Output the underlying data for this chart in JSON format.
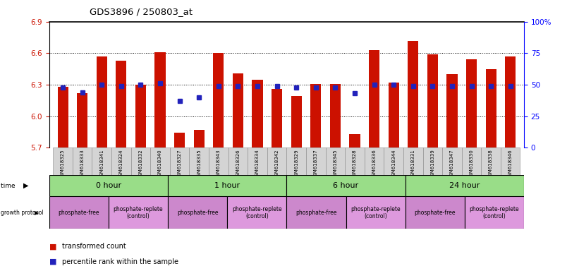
{
  "title": "GDS3896 / 250803_at",
  "samples": [
    "GSM618325",
    "GSM618333",
    "GSM618341",
    "GSM618324",
    "GSM618332",
    "GSM618340",
    "GSM618327",
    "GSM618335",
    "GSM618343",
    "GSM618326",
    "GSM618334",
    "GSM618342",
    "GSM618329",
    "GSM618337",
    "GSM618345",
    "GSM618328",
    "GSM618336",
    "GSM618344",
    "GSM618331",
    "GSM618339",
    "GSM618347",
    "GSM618330",
    "GSM618338",
    "GSM618346"
  ],
  "bar_values": [
    6.28,
    6.22,
    6.57,
    6.53,
    6.3,
    6.61,
    5.84,
    5.87,
    6.6,
    6.41,
    6.35,
    6.26,
    6.19,
    6.31,
    6.31,
    5.83,
    6.63,
    6.32,
    6.72,
    6.59,
    6.4,
    6.54,
    6.45,
    6.57
  ],
  "percentile_values": [
    48,
    44,
    50,
    49,
    50,
    51,
    37,
    40,
    49,
    49,
    49,
    49,
    48,
    48,
    48,
    43,
    50,
    50,
    49,
    49,
    49,
    49,
    49,
    49
  ],
  "ymin": 5.7,
  "ymax": 6.9,
  "yticks": [
    5.7,
    6.0,
    6.3,
    6.6,
    6.9
  ],
  "dotted_lines": [
    6.0,
    6.3,
    6.6
  ],
  "right_yticks": [
    0,
    25,
    50,
    75,
    100
  ],
  "right_yticklabels": [
    "0",
    "25",
    "50",
    "75",
    "100%"
  ],
  "bar_color": "#cc1100",
  "square_color": "#2222bb",
  "groups": [
    {
      "label": "0 hour",
      "start": 0,
      "end": 6
    },
    {
      "label": "1 hour",
      "start": 6,
      "end": 12
    },
    {
      "label": "6 hour",
      "start": 12,
      "end": 18
    },
    {
      "label": "24 hour",
      "start": 18,
      "end": 24
    }
  ],
  "protocols": [
    {
      "label": "phosphate-free",
      "start": 0,
      "end": 3,
      "replete": false
    },
    {
      "label": "phosphate-replete\n(control)",
      "start": 3,
      "end": 6,
      "replete": true
    },
    {
      "label": "phosphate-free",
      "start": 6,
      "end": 9,
      "replete": false
    },
    {
      "label": "phosphate-replete\n(control)",
      "start": 9,
      "end": 12,
      "replete": true
    },
    {
      "label": "phosphate-free",
      "start": 12,
      "end": 15,
      "replete": false
    },
    {
      "label": "phosphate-replete\n(control)",
      "start": 15,
      "end": 18,
      "replete": true
    },
    {
      "label": "phosphate-free",
      "start": 18,
      "end": 21,
      "replete": false
    },
    {
      "label": "phosphate-replete\n(control)",
      "start": 21,
      "end": 24,
      "replete": true
    }
  ],
  "time_color": "#99dd88",
  "proto_free_color": "#cc88cc",
  "proto_replete_color": "#dd99dd",
  "bar_color_red": "#cc1100",
  "ylabel_color": "#cc1100"
}
